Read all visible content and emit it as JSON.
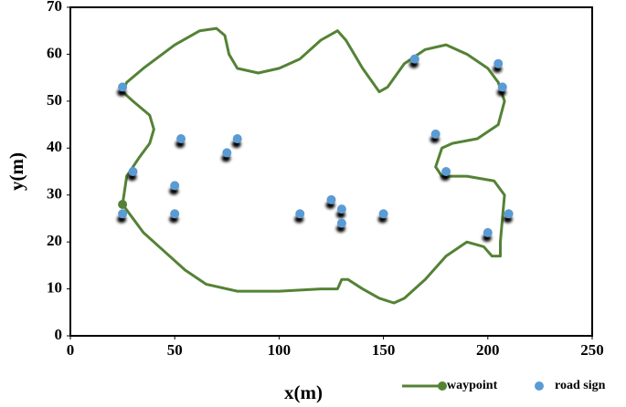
{
  "chart_data": {
    "type": "scatter",
    "xlabel": "x(m)",
    "ylabel": "y(m)",
    "xlim": [
      0,
      250
    ],
    "ylim": [
      0,
      70
    ],
    "xticks": [
      0,
      50,
      100,
      150,
      200,
      250
    ],
    "yticks": [
      0,
      10,
      20,
      30,
      40,
      50,
      60,
      70
    ],
    "legend": "bottom-right",
    "series": [
      {
        "name": "waypoint",
        "type": "line",
        "color": "#548235",
        "x": [
          25,
          27,
          33,
          38,
          40,
          38,
          30,
          25,
          27,
          35,
          50,
          62,
          70,
          74,
          76,
          80,
          90,
          100,
          110,
          120,
          128,
          132,
          140,
          148,
          152,
          160,
          170,
          180,
          190,
          200,
          205,
          208,
          205,
          195,
          183,
          178,
          175,
          178,
          190,
          203,
          208,
          207,
          206,
          206,
          202,
          198,
          190,
          180,
          170,
          160,
          155,
          148,
          140,
          133,
          130,
          128,
          120,
          100,
          80,
          65,
          55,
          45,
          35,
          30,
          25
        ],
        "values": [
          28,
          34,
          38,
          41,
          44,
          47,
          50,
          52,
          54,
          57,
          62,
          65,
          65.5,
          64,
          60,
          57,
          56,
          57,
          59,
          63,
          65,
          63,
          57,
          52,
          53,
          58,
          61,
          62,
          60,
          57,
          54,
          50,
          45,
          42,
          41,
          40,
          36,
          34,
          34,
          33,
          30,
          25,
          20,
          17,
          17,
          19,
          20,
          17,
          12,
          8,
          7,
          8,
          10,
          12,
          12,
          10,
          10,
          9.5,
          9.5,
          11,
          14,
          18,
          22,
          25,
          28
        ]
      },
      {
        "name": "road sign",
        "type": "scatter",
        "color": "#5b9bd5",
        "x": [
          25,
          30,
          25,
          50,
          50,
          53,
          75,
          80,
          110,
          125,
          130,
          130,
          150,
          165,
          175,
          180,
          205,
          207,
          200,
          210
        ],
        "values": [
          53,
          35,
          26,
          32,
          26,
          42,
          39,
          42,
          26,
          29,
          27,
          24,
          26,
          59,
          43,
          35,
          58,
          53,
          22,
          26
        ]
      }
    ]
  }
}
